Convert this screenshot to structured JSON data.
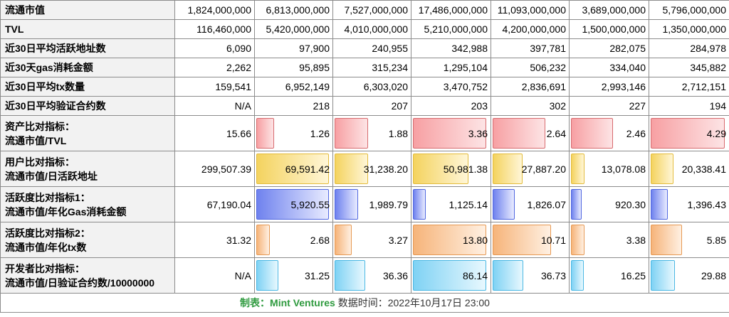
{
  "rows": [
    {
      "label": "流通市值",
      "values": [
        "1,824,000,000",
        "6,813,000,000",
        "7,527,000,000",
        "17,486,000,000",
        "11,093,000,000",
        "3,689,000,000",
        "5,796,000,000"
      ]
    },
    {
      "label": "TVL",
      "values": [
        "116,460,000",
        "5,420,000,000",
        "4,010,000,000",
        "5,210,000,000",
        "4,200,000,000",
        "1,500,000,000",
        "1,350,000,000"
      ]
    },
    {
      "label": "近30日平均活跃地址数",
      "values": [
        "6,090",
        "97,900",
        "240,955",
        "342,988",
        "397,781",
        "282,075",
        "284,978"
      ]
    },
    {
      "label": "近30天gas消耗金额",
      "values": [
        "2,262",
        "95,895",
        "315,234",
        "1,295,104",
        "506,232",
        "334,040",
        "345,882"
      ]
    },
    {
      "label": "近30日平均tx数量",
      "values": [
        "159,541",
        "6,952,149",
        "6,303,020",
        "3,470,752",
        "2,836,691",
        "2,993,146",
        "2,712,151"
      ]
    },
    {
      "label": "近30日平均验证合约数",
      "values": [
        "N/A",
        "218",
        "207",
        "203",
        "302",
        "227",
        "194"
      ]
    }
  ],
  "ratio_rows": [
    {
      "label_line1": "资产比对指标：",
      "label_line2": "流通市值/TVL",
      "color": "red",
      "values": [
        "15.66",
        "1.26",
        "1.88",
        "3.36",
        "2.64",
        "2.46",
        "4.29"
      ],
      "bar_fraction": [
        0,
        0.25,
        0.45,
        0.95,
        0.7,
        0.55,
        0.95
      ]
    },
    {
      "label_line1": "用户比对指标：",
      "label_line2": "流通市值/日活跃地址",
      "color": "yellow",
      "values": [
        "299,507.39",
        "69,591.42",
        "31,238.20",
        "50,981.38",
        "27,887.20",
        "13,078.08",
        "20,338.41"
      ],
      "bar_fraction": [
        0,
        0.95,
        0.45,
        0.72,
        0.4,
        0.19,
        0.3
      ]
    },
    {
      "label_line1": "活跃度比对指标1：",
      "label_line2": "流通市值/年化Gas消耗金额",
      "color": "blue",
      "values": [
        "67,190.04",
        "5,920.55",
        "1,989.79",
        "1,125.14",
        "1,826.07",
        "920.30",
        "1,396.43"
      ],
      "bar_fraction": [
        0,
        0.95,
        0.32,
        0.18,
        0.3,
        0.15,
        0.23
      ]
    },
    {
      "label_line1": "活跃度比对指标2：",
      "label_line2": "流通市值/年化tx数",
      "color": "orange",
      "values": [
        "31.32",
        "2.68",
        "3.27",
        "13.80",
        "10.71",
        "3.38",
        "5.85"
      ],
      "bar_fraction": [
        0,
        0.19,
        0.24,
        0.95,
        0.77,
        0.19,
        0.41
      ]
    },
    {
      "label_line1": "开发者比对指标：",
      "label_line2": "流通市值/日验证合约数/10000000",
      "color": "cyan",
      "values": [
        "N/A",
        "31.25",
        "36.36",
        "86.14",
        "36.73",
        "16.25",
        "29.88"
      ],
      "bar_fraction": [
        0,
        0.3,
        0.41,
        0.95,
        0.41,
        0.18,
        0.32
      ]
    }
  ],
  "footer": {
    "maker_label": "制表：",
    "maker": "Mint Ventures",
    "time_label": "数据时间：",
    "time": "2022年10月17日 23:00"
  }
}
